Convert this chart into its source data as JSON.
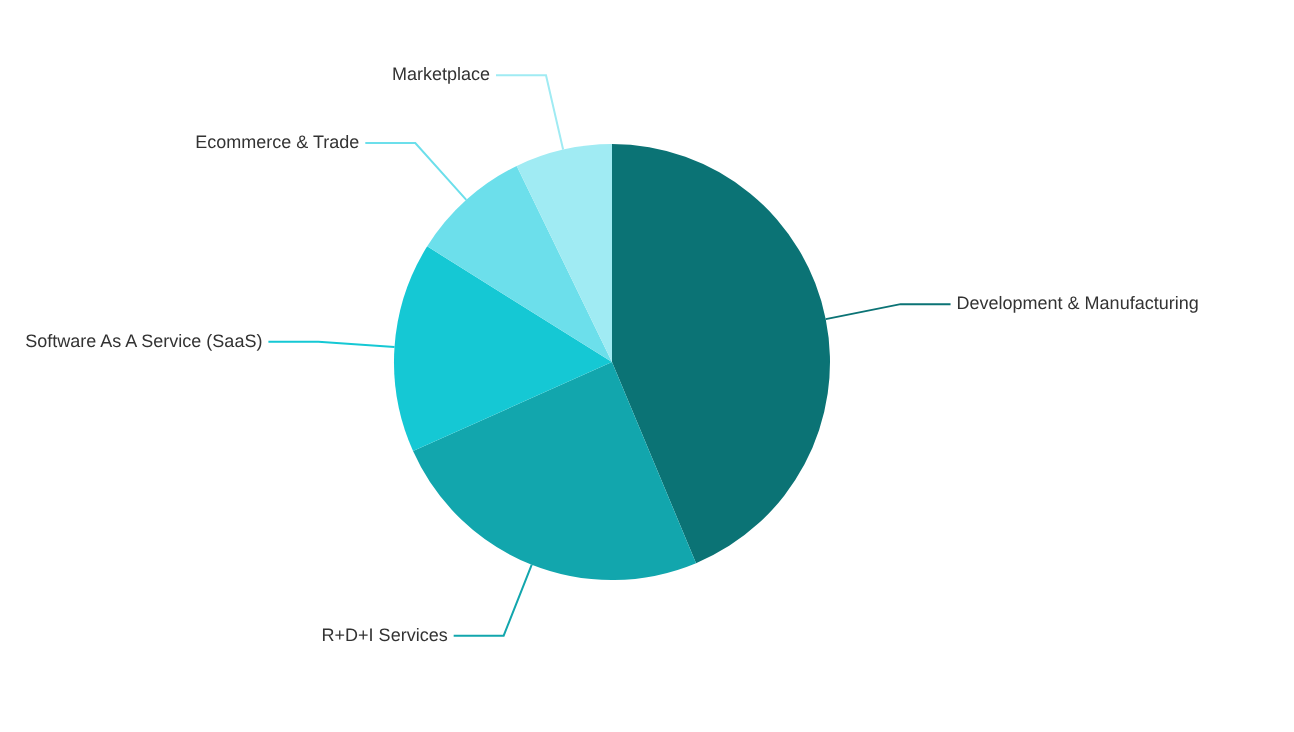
{
  "chart_data": {
    "type": "pie",
    "categories": [
      "Development & Manufacturing",
      "R+D+I Services",
      "Software As A Service (SaaS)",
      "Ecommerce & Trade",
      "Marketplace"
    ],
    "values": [
      43.7,
      24.6,
      15.6,
      8.9,
      7.2
    ],
    "colors": [
      "#0b7375",
      "#12a6ad",
      "#15c8d4",
      "#6cdfeb",
      "#a0ebf3"
    ],
    "legend": false
  }
}
